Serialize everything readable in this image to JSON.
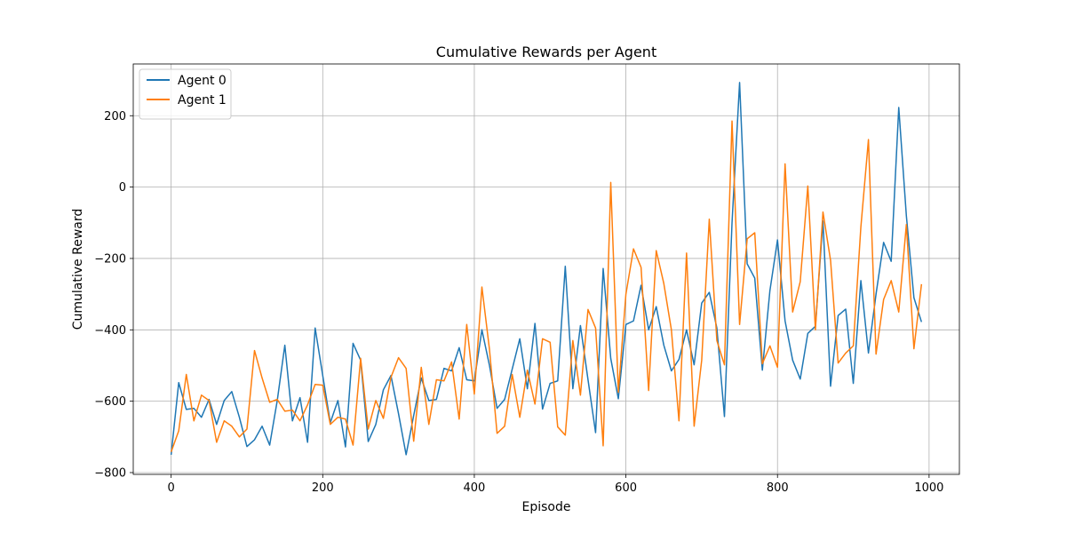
{
  "chart_data": {
    "type": "line",
    "title": "Cumulative Rewards per Agent",
    "xlabel": "Episode",
    "ylabel": "Cumulative Reward",
    "xlim": [
      -50,
      1040
    ],
    "ylim": [
      -805,
      345
    ],
    "xticks": [
      0,
      200,
      400,
      600,
      800,
      1000
    ],
    "yticks": [
      -800,
      -600,
      -400,
      -200,
      0,
      200
    ],
    "grid": true,
    "legend": "upper-left",
    "x": [
      0,
      10,
      20,
      30,
      40,
      50,
      60,
      70,
      80,
      90,
      100,
      110,
      120,
      130,
      140,
      150,
      160,
      170,
      180,
      190,
      200,
      210,
      220,
      230,
      240,
      250,
      260,
      270,
      280,
      290,
      300,
      310,
      320,
      330,
      340,
      350,
      360,
      370,
      380,
      390,
      400,
      410,
      420,
      430,
      440,
      450,
      460,
      470,
      480,
      490,
      500,
      510,
      520,
      530,
      540,
      550,
      560,
      570,
      580,
      590,
      600,
      610,
      620,
      630,
      640,
      650,
      660,
      670,
      680,
      690,
      700,
      710,
      720,
      730,
      740,
      750,
      760,
      770,
      780,
      790,
      800,
      810,
      820,
      830,
      840,
      850,
      860,
      870,
      880,
      890,
      900,
      910,
      920,
      930,
      940,
      950,
      960,
      970,
      980,
      990
    ],
    "series": [
      {
        "name": "Agent 0",
        "color": "#1f77b4",
        "values": [
          -750,
          -548,
          -623,
          -620,
          -645,
          -595,
          -665,
          -598,
          -573,
          -645,
          -727,
          -708,
          -670,
          -723,
          -598,
          -443,
          -655,
          -590,
          -715,
          -395,
          -528,
          -660,
          -598,
          -728,
          -438,
          -485,
          -713,
          -665,
          -568,
          -528,
          -635,
          -750,
          -640,
          -535,
          -598,
          -595,
          -508,
          -515,
          -450,
          -540,
          -543,
          -400,
          -500,
          -620,
          -595,
          -510,
          -425,
          -565,
          -382,
          -622,
          -550,
          -543,
          -222,
          -565,
          -388,
          -540,
          -688,
          -228,
          -480,
          -593,
          -385,
          -375,
          -275,
          -400,
          -335,
          -443,
          -515,
          -483,
          -400,
          -498,
          -325,
          -295,
          -395,
          -643,
          -100,
          293,
          -215,
          -255,
          -513,
          -290,
          -148,
          -375,
          -485,
          -538,
          -410,
          -390,
          -95,
          -558,
          -360,
          -342,
          -550,
          -262,
          -465,
          -300,
          -155,
          -208,
          223,
          -80,
          -310,
          -378
        ]
      },
      {
        "name": "Agent 1",
        "color": "#ff7f0e",
        "values": [
          -742,
          -683,
          -525,
          -655,
          -583,
          -598,
          -715,
          -655,
          -670,
          -700,
          -678,
          -458,
          -535,
          -603,
          -595,
          -628,
          -625,
          -655,
          -610,
          -553,
          -555,
          -665,
          -645,
          -650,
          -723,
          -480,
          -678,
          -598,
          -648,
          -533,
          -478,
          -508,
          -712,
          -505,
          -665,
          -540,
          -543,
          -490,
          -650,
          -385,
          -580,
          -280,
          -455,
          -690,
          -670,
          -525,
          -645,
          -513,
          -608,
          -425,
          -435,
          -672,
          -695,
          -430,
          -583,
          -343,
          -395,
          -725,
          13,
          -575,
          -300,
          -173,
          -225,
          -570,
          -178,
          -270,
          -400,
          -655,
          -185,
          -670,
          -485,
          -90,
          -430,
          -498,
          185,
          -385,
          -145,
          -128,
          -495,
          -445,
          -505,
          65,
          -350,
          -265,
          3,
          -400,
          -70,
          -205,
          -493,
          -465,
          -445,
          -112,
          133,
          -468,
          -315,
          -262,
          -350,
          -105,
          -453,
          -272
        ]
      }
    ]
  }
}
